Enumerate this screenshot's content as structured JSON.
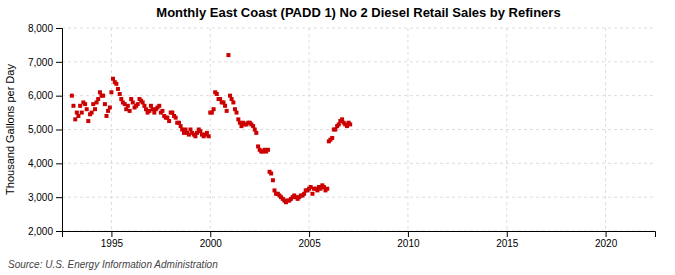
{
  "chart_data": {
    "type": "scatter",
    "title": "Monthly East Coast (PADD 1) No 2 Diesel Retail Sales by Refiners",
    "ylabel": "Thousand Gallons per Day",
    "source": "Source: U.S. Energy Information Administration",
    "color": "#cc0000",
    "marker": "square",
    "grid": true,
    "xlim": [
      1992.5,
      2022.5
    ],
    "xticks": [
      1995,
      2000,
      2005,
      2010,
      2015,
      2020
    ],
    "ylim": [
      2000,
      8000
    ],
    "yticks": [
      {
        "value": 2000,
        "label": "2,000"
      },
      {
        "value": 3000,
        "label": "3,000"
      },
      {
        "value": 4000,
        "label": "4,000"
      },
      {
        "value": 5000,
        "label": "5,000"
      },
      {
        "value": 6000,
        "label": "6,000"
      },
      {
        "value": 7000,
        "label": "7,000"
      },
      {
        "value": 8000,
        "label": "8,000"
      }
    ],
    "x": [
      1993.0,
      1993.08,
      1993.17,
      1993.25,
      1993.33,
      1993.42,
      1993.5,
      1993.58,
      1993.67,
      1993.75,
      1993.83,
      1993.92,
      1994.0,
      1994.08,
      1994.17,
      1994.25,
      1994.33,
      1994.42,
      1994.5,
      1994.58,
      1994.67,
      1994.75,
      1994.83,
      1994.92,
      1995.0,
      1995.08,
      1995.17,
      1995.25,
      1995.33,
      1995.42,
      1995.5,
      1995.58,
      1995.67,
      1995.75,
      1995.83,
      1995.92,
      1996.0,
      1996.08,
      1996.17,
      1996.25,
      1996.33,
      1996.42,
      1996.5,
      1996.58,
      1996.67,
      1996.75,
      1996.83,
      1996.92,
      1997.0,
      1997.08,
      1997.17,
      1997.25,
      1997.33,
      1997.42,
      1997.5,
      1997.58,
      1997.67,
      1997.75,
      1997.83,
      1997.92,
      1998.0,
      1998.08,
      1998.17,
      1998.25,
      1998.33,
      1998.42,
      1998.5,
      1998.58,
      1998.67,
      1998.75,
      1998.83,
      1998.92,
      1999.0,
      1999.08,
      1999.17,
      1999.25,
      1999.33,
      1999.42,
      1999.5,
      1999.58,
      1999.67,
      1999.75,
      1999.83,
      1999.92,
      2000.0,
      2000.08,
      2000.17,
      2000.25,
      2000.33,
      2000.42,
      2000.5,
      2000.58,
      2000.67,
      2000.75,
      2000.83,
      2000.92,
      2001.0,
      2001.08,
      2001.17,
      2001.25,
      2001.33,
      2001.42,
      2001.5,
      2001.58,
      2001.67,
      2001.75,
      2001.83,
      2001.92,
      2002.0,
      2002.08,
      2002.17,
      2002.25,
      2002.33,
      2002.42,
      2002.5,
      2002.58,
      2002.67,
      2002.75,
      2002.83,
      2002.92,
      2003.0,
      2003.08,
      2003.17,
      2003.25,
      2003.33,
      2003.42,
      2003.5,
      2003.58,
      2003.67,
      2003.75,
      2003.83,
      2003.92,
      2004.0,
      2004.08,
      2004.17,
      2004.25,
      2004.33,
      2004.42,
      2004.5,
      2004.58,
      2004.67,
      2004.75,
      2004.83,
      2004.92,
      2005.0,
      2005.08,
      2005.17,
      2005.25,
      2005.33,
      2005.42,
      2005.5,
      2005.58,
      2005.67,
      2005.75,
      2005.83,
      2005.92,
      2006.0,
      2006.08,
      2006.17,
      2006.25,
      2006.33,
      2006.42,
      2006.5,
      2006.58,
      2006.67,
      2006.75,
      2006.83,
      2006.92,
      2007.0,
      2007.08
    ],
    "values": [
      6000,
      5700,
      5300,
      5500,
      5400,
      5700,
      5500,
      5800,
      5750,
      5600,
      5250,
      5450,
      5500,
      5750,
      5600,
      5800,
      5900,
      6100,
      6000,
      6000,
      5750,
      5400,
      5550,
      5650,
      6100,
      6500,
      6400,
      6350,
      6200,
      6050,
      5900,
      5800,
      5750,
      5600,
      5700,
      5550,
      5900,
      5800,
      5650,
      5700,
      5750,
      5900,
      5850,
      5800,
      5700,
      5600,
      5500,
      5550,
      5700,
      5600,
      5500,
      5600,
      5650,
      5700,
      5500,
      5550,
      5400,
      5350,
      5350,
      5250,
      5500,
      5500,
      5400,
      5350,
      5200,
      5200,
      5100,
      5000,
      4900,
      5000,
      4900,
      4850,
      5000,
      4900,
      4850,
      4800,
      4900,
      5000,
      4950,
      4850,
      4800,
      4850,
      4900,
      4800,
      5500,
      5500,
      5600,
      6100,
      6050,
      5900,
      5900,
      5800,
      5800,
      5700,
      5550,
      7200,
      6000,
      5900,
      5800,
      5600,
      5500,
      5300,
      5200,
      5100,
      5200,
      5150,
      5150,
      5200,
      5200,
      5150,
      5100,
      5000,
      4900,
      4500,
      4400,
      4350,
      4350,
      4400,
      4350,
      4400,
      3750,
      3700,
      3500,
      3200,
      3100,
      3100,
      3050,
      3000,
      2950,
      2900,
      2850,
      2900,
      2900,
      2950,
      3000,
      3050,
      3000,
      2950,
      3000,
      3050,
      3050,
      3100,
      3200,
      3200,
      3250,
      3300,
      3100,
      3250,
      3250,
      3200,
      3300,
      3250,
      3350,
      3300,
      3200,
      3250,
      4650,
      4700,
      4750,
      5000,
      5000,
      5100,
      5150,
      5250,
      5300,
      5200,
      5150,
      5100,
      5200,
      5150
    ]
  }
}
